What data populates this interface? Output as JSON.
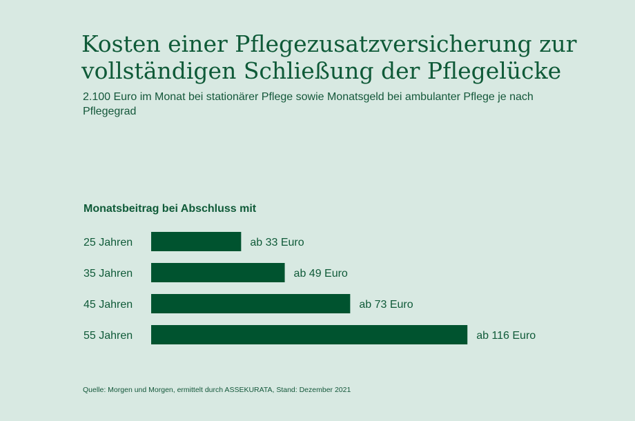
{
  "title": "Kosten einer Pflegezusatzversicherung zur vollständigen Schließung der Pflegelücke",
  "subtitle": "2.100 Euro im Monat bei stationärer Pflege sowie Monatsgeld bei ambulanter Pflege je nach Pflegegrad",
  "source": "Quelle: Morgen und Morgen, ermittelt durch ASSEKURATA, Stand: Dezember 2021",
  "colors": {
    "background": "#d8e9e2",
    "bar": "#00532f",
    "text": "#0f5a38"
  },
  "chart_data": {
    "type": "bar",
    "orientation": "horizontal",
    "title": "Monatsbeitrag bei Abschluss mit",
    "categories": [
      "25 Jahren",
      "35 Jahren",
      "45 Jahren",
      "55 Jahren"
    ],
    "values": [
      33,
      49,
      73,
      116
    ],
    "data_labels": [
      "ab 33 Euro",
      "ab 49 Euro",
      "ab 73 Euro",
      "ab 116 Euro"
    ],
    "unit": "Euro",
    "grid": false,
    "legend": "none"
  }
}
